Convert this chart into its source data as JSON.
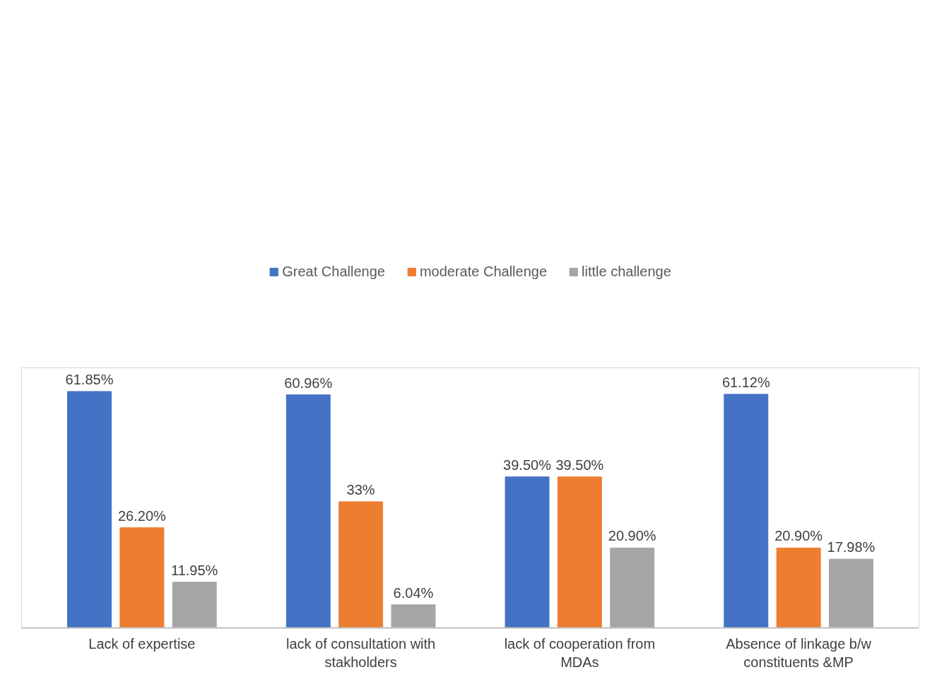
{
  "chart_data": {
    "type": "bar",
    "categories": [
      "Lack of expertise",
      "lack of consultation with stakholders",
      "lack of cooperation from MDAs",
      "Absence of linkage b/w constituents &MP"
    ],
    "series": [
      {
        "name": "Great Challenge",
        "color": "#4472c4",
        "values": [
          61.85,
          60.96,
          39.5,
          61.12
        ],
        "value_labels": [
          "61.85%",
          "60.96%",
          "39.50%",
          "61.12%"
        ]
      },
      {
        "name": "moderate Challenge",
        "color": "#ed7d31",
        "values": [
          26.2,
          33,
          39.5,
          20.9
        ],
        "value_labels": [
          "26.20%",
          "33%",
          "39.50%",
          "20.90%"
        ]
      },
      {
        "name": "little challenge",
        "color": "#a5a5a5",
        "values": [
          11.95,
          6.04,
          20.9,
          17.98
        ],
        "value_labels": [
          "11.95%",
          "6.04%",
          "20.90%",
          "17.98%"
        ]
      }
    ],
    "legend": "top",
    "grid": false
  }
}
